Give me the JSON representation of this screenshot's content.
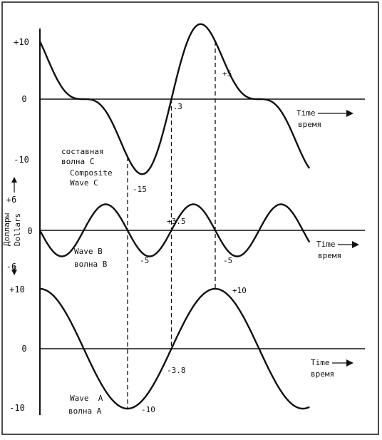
{
  "ylabel": [
    "Доллары",
    "Dollars"
  ],
  "time_label": {
    "en": "Time",
    "ru": "время"
  },
  "chart_data": [
    {
      "type": "line",
      "name": "Composite Wave C",
      "labels": [
        "составная",
        "волна С",
        "Composite",
        "Wave C"
      ],
      "yticks": [
        {
          "v": 10,
          "t": "+10"
        },
        {
          "v": 0,
          "t": "0"
        },
        {
          "v": -10,
          "t": "-10"
        }
      ],
      "ylim": [
        -10,
        10
      ],
      "annotations": [
        {
          "x": 2.0,
          "y": -15,
          "text": "-15"
        },
        {
          "x": 3.0,
          "y": -0.3,
          "text": "-.3"
        },
        {
          "x": 4.0,
          "y": 5,
          "text": "+5"
        }
      ]
    },
    {
      "type": "line",
      "name": "Wave B",
      "labels": [
        "Wave B",
        "волна В"
      ],
      "yticks": [
        {
          "v": 6,
          "t": "+6"
        },
        {
          "v": 0,
          "t": "0"
        },
        {
          "v": -6,
          "t": "-6"
        }
      ],
      "ylim": [
        -6,
        6
      ],
      "annotations": [
        {
          "x": 2.0,
          "y": -5,
          "text": "-5"
        },
        {
          "x": 3.0,
          "y": 3.5,
          "text": "+3.5"
        },
        {
          "x": 4.0,
          "y": -5,
          "text": "-5"
        }
      ]
    },
    {
      "type": "line",
      "name": "Wave A",
      "labels": [
        "Wave  A",
        "волна А"
      ],
      "yticks": [
        {
          "v": 10,
          "t": "+10"
        },
        {
          "v": 0,
          "t": "0"
        },
        {
          "v": -10,
          "t": "-10"
        }
      ],
      "ylim": [
        -10,
        10
      ],
      "annotations": [
        {
          "x": 2.0,
          "y": -10,
          "text": "-10"
        },
        {
          "x": 3.0,
          "y": -3.8,
          "text": "-3.8"
        },
        {
          "x": 4.0,
          "y": 10,
          "text": "+10"
        }
      ]
    }
  ],
  "dashed_guides_x": [
    2.0,
    3.0,
    4.0
  ]
}
